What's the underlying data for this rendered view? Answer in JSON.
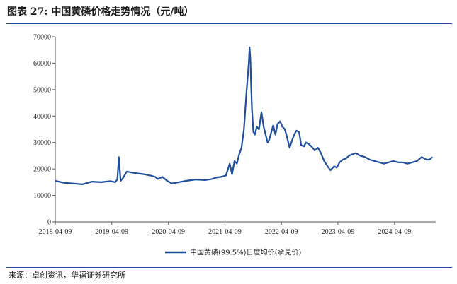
{
  "figure": {
    "title": "图表 27:  中国黄磷价格走势情况（元/吨）",
    "source": "来源：卓创资讯，华福证券研究所"
  },
  "colors": {
    "line": "#1f4e9c",
    "axis": "#555555",
    "rule": "#1f4e9c"
  },
  "chart_data": {
    "type": "line",
    "title": "",
    "xlabel": "",
    "ylabel": "",
    "ylim": [
      0,
      70000
    ],
    "yticks": [
      0,
      10000,
      20000,
      30000,
      40000,
      50000,
      60000,
      70000
    ],
    "xlim": [
      "2018-04-09",
      "2024-12-31"
    ],
    "xticks": [
      "2018-04-09",
      "2019-04-09",
      "2020-04-09",
      "2021-04-09",
      "2022-04-09",
      "2023-04-09",
      "2024-04-09"
    ],
    "grid": false,
    "legend": "bottom-center",
    "series": [
      {
        "name": "中国黄磷(99.5%)日度均价(承兑价)",
        "x": [
          "2018-04-09",
          "2018-06-01",
          "2018-08-01",
          "2018-10-01",
          "2018-12-01",
          "2019-02-01",
          "2019-03-01",
          "2019-04-01",
          "2019-05-01",
          "2019-05-15",
          "2019-05-25",
          "2019-06-05",
          "2019-06-20",
          "2019-07-15",
          "2019-09-01",
          "2019-11-01",
          "2019-12-15",
          "2020-01-15",
          "2020-02-01",
          "2020-03-01",
          "2020-04-01",
          "2020-05-01",
          "2020-06-15",
          "2020-08-01",
          "2020-10-01",
          "2020-12-01",
          "2021-01-15",
          "2021-02-15",
          "2021-03-15",
          "2021-04-15",
          "2021-05-10",
          "2021-05-25",
          "2021-06-10",
          "2021-06-25",
          "2021-07-10",
          "2021-07-25",
          "2021-08-10",
          "2021-08-25",
          "2021-09-10",
          "2021-09-15",
          "2021-09-20",
          "2021-09-25",
          "2021-10-01",
          "2021-10-10",
          "2021-10-20",
          "2021-11-01",
          "2021-11-15",
          "2021-12-01",
          "2021-12-15",
          "2022-01-01",
          "2022-01-10",
          "2022-01-20",
          "2022-02-01",
          "2022-02-15",
          "2022-03-01",
          "2022-03-15",
          "2022-04-01",
          "2022-04-15",
          "2022-05-01",
          "2022-05-15",
          "2022-06-01",
          "2022-06-15",
          "2022-07-01",
          "2022-07-15",
          "2022-08-01",
          "2022-08-15",
          "2022-09-01",
          "2022-09-15",
          "2022-10-01",
          "2022-10-20",
          "2022-11-10",
          "2022-12-01",
          "2022-12-20",
          "2023-01-10",
          "2023-02-01",
          "2023-02-20",
          "2023-03-15",
          "2023-04-01",
          "2023-04-20",
          "2023-05-10",
          "2023-06-01",
          "2023-06-20",
          "2023-07-10",
          "2023-08-01",
          "2023-09-01",
          "2023-10-01",
          "2023-11-01",
          "2023-12-01",
          "2024-01-01",
          "2024-02-01",
          "2024-03-01",
          "2024-04-01",
          "2024-05-01",
          "2024-06-01",
          "2024-07-01",
          "2024-08-01",
          "2024-09-01",
          "2024-10-01",
          "2024-11-01",
          "2024-11-20",
          "2024-12-10"
        ],
        "values": [
          15500,
          14800,
          14500,
          14200,
          15200,
          15000,
          15200,
          15400,
          15000,
          16000,
          24500,
          15500,
          16500,
          19000,
          18500,
          18000,
          17500,
          17000,
          16200,
          17000,
          15500,
          14500,
          15000,
          15500,
          16000,
          15800,
          16200,
          16800,
          17000,
          17500,
          22000,
          18000,
          23000,
          22000,
          25500,
          28000,
          35000,
          48000,
          60000,
          66000,
          62000,
          52000,
          42000,
          34000,
          33000,
          36000,
          35000,
          41500,
          36000,
          32000,
          30000,
          31000,
          33500,
          36500,
          33000,
          37000,
          38000,
          36000,
          35000,
          32000,
          28000,
          30500,
          33000,
          34500,
          34000,
          29000,
          28500,
          30000,
          29500,
          28500,
          27000,
          28000,
          26000,
          23000,
          21000,
          19500,
          21000,
          20500,
          22500,
          23500,
          24000,
          25000,
          25500,
          26000,
          25000,
          24500,
          23500,
          23000,
          22500,
          22000,
          22500,
          23000,
          22500,
          22500,
          22000,
          22500,
          23000,
          24500,
          23500,
          23500,
          24500
        ]
      }
    ]
  }
}
